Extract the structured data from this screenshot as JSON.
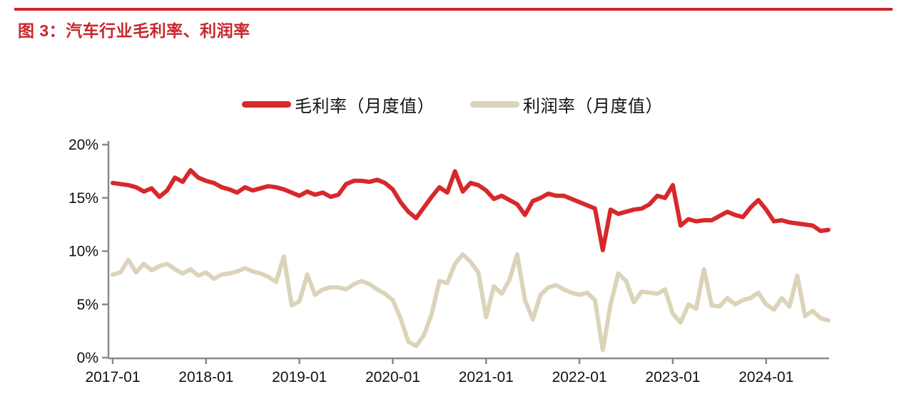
{
  "header": {
    "title": "图 3：汽车行业毛利率、利润率"
  },
  "legend": [
    {
      "label": "毛利率（月度值）",
      "color": "#d7282b"
    },
    {
      "label": "利润率（月度值）",
      "color": "#dbd4ba"
    }
  ],
  "colors": {
    "accent_red": "#c9262c",
    "series_red": "#d7282b",
    "series_beige": "#dbd4ba",
    "axis_gray": "#8a8a8a",
    "text_black": "#111111"
  },
  "chart_data": {
    "type": "line",
    "title": "图 3：汽车行业毛利率、利润率",
    "xlabel": "",
    "ylabel": "",
    "ylim": [
      0,
      20
    ],
    "grid": false,
    "legend_position": "top",
    "y_ticks": [
      "0%",
      "5%",
      "10%",
      "15%",
      "20%"
    ],
    "x_tick_labels": [
      "2017-01",
      "2018-01",
      "2019-01",
      "2020-01",
      "2021-01",
      "2022-01",
      "2023-01",
      "2024-01"
    ],
    "x": [
      "2017-01",
      "2017-02",
      "2017-03",
      "2017-04",
      "2017-05",
      "2017-06",
      "2017-07",
      "2017-08",
      "2017-09",
      "2017-10",
      "2017-11",
      "2017-12",
      "2018-01",
      "2018-02",
      "2018-03",
      "2018-04",
      "2018-05",
      "2018-06",
      "2018-07",
      "2018-08",
      "2018-09",
      "2018-10",
      "2018-11",
      "2018-12",
      "2019-01",
      "2019-02",
      "2019-03",
      "2019-04",
      "2019-05",
      "2019-06",
      "2019-07",
      "2019-08",
      "2019-09",
      "2019-10",
      "2019-11",
      "2019-12",
      "2020-01",
      "2020-02",
      "2020-03",
      "2020-04",
      "2020-05",
      "2020-06",
      "2020-07",
      "2020-08",
      "2020-09",
      "2020-10",
      "2020-11",
      "2020-12",
      "2021-01",
      "2021-02",
      "2021-03",
      "2021-04",
      "2021-05",
      "2021-06",
      "2021-07",
      "2021-08",
      "2021-09",
      "2021-10",
      "2021-11",
      "2021-12",
      "2022-01",
      "2022-02",
      "2022-03",
      "2022-04",
      "2022-05",
      "2022-06",
      "2022-07",
      "2022-08",
      "2022-09",
      "2022-10",
      "2022-11",
      "2022-12",
      "2023-01",
      "2023-02",
      "2023-03",
      "2023-04",
      "2023-05",
      "2023-06",
      "2023-07",
      "2023-08",
      "2023-09",
      "2023-10",
      "2023-11",
      "2023-12",
      "2024-01",
      "2024-02",
      "2024-03",
      "2024-04",
      "2024-05",
      "2024-06",
      "2024-07",
      "2024-08",
      "2024-09"
    ],
    "series": [
      {
        "name": "毛利率（月度值）",
        "color": "#d7282b",
        "values": [
          16.4,
          16.3,
          16.2,
          16.0,
          15.6,
          15.9,
          15.1,
          15.7,
          16.9,
          16.5,
          17.6,
          16.9,
          16.6,
          16.4,
          16.0,
          15.8,
          15.5,
          16.0,
          15.7,
          15.9,
          16.1,
          16.0,
          15.8,
          15.5,
          15.2,
          15.6,
          15.3,
          15.5,
          15.1,
          15.3,
          16.3,
          16.6,
          16.6,
          16.5,
          16.7,
          16.4,
          15.8,
          14.6,
          13.7,
          13.1,
          14.1,
          15.1,
          16.0,
          15.5,
          17.5,
          15.6,
          16.4,
          16.2,
          15.7,
          14.9,
          15.2,
          14.8,
          14.4,
          13.4,
          14.7,
          15.0,
          15.4,
          15.2,
          15.2,
          14.9,
          14.6,
          14.3,
          14.0,
          10.1,
          13.9,
          13.5,
          13.7,
          13.9,
          14.0,
          14.4,
          15.2,
          15.0,
          16.2,
          12.4,
          13.0,
          12.8,
          12.9,
          12.9,
          13.3,
          13.7,
          13.4,
          13.2,
          14.1,
          14.8,
          13.9,
          12.8,
          12.9,
          12.7,
          12.6,
          12.5,
          12.4,
          11.9,
          12.0
        ]
      },
      {
        "name": "利润率（月度值）",
        "color": "#dbd4ba",
        "values": [
          7.8,
          8.0,
          9.2,
          8.0,
          8.8,
          8.2,
          8.6,
          8.8,
          8.3,
          7.9,
          8.3,
          7.7,
          8.0,
          7.4,
          7.8,
          7.9,
          8.1,
          8.4,
          8.1,
          7.9,
          7.6,
          7.1,
          9.5,
          4.9,
          5.3,
          7.8,
          5.9,
          6.4,
          6.6,
          6.6,
          6.4,
          6.9,
          7.2,
          6.9,
          6.4,
          6.0,
          5.4,
          3.7,
          1.5,
          1.1,
          2.1,
          4.1,
          7.2,
          7.0,
          8.8,
          9.7,
          9.0,
          8.0,
          3.8,
          6.7,
          6.0,
          7.3,
          9.7,
          5.4,
          3.6,
          5.9,
          6.6,
          6.8,
          6.4,
          6.1,
          5.9,
          6.1,
          5.4,
          0.7,
          5.0,
          7.9,
          7.2,
          5.2,
          6.2,
          6.1,
          6.0,
          6.4,
          4.1,
          3.3,
          5.0,
          4.6,
          8.3,
          4.9,
          4.8,
          5.6,
          5.0,
          5.4,
          5.6,
          6.1,
          5.0,
          4.5,
          5.6,
          4.8,
          7.7,
          3.9,
          4.4,
          3.7,
          3.5
        ]
      }
    ]
  }
}
